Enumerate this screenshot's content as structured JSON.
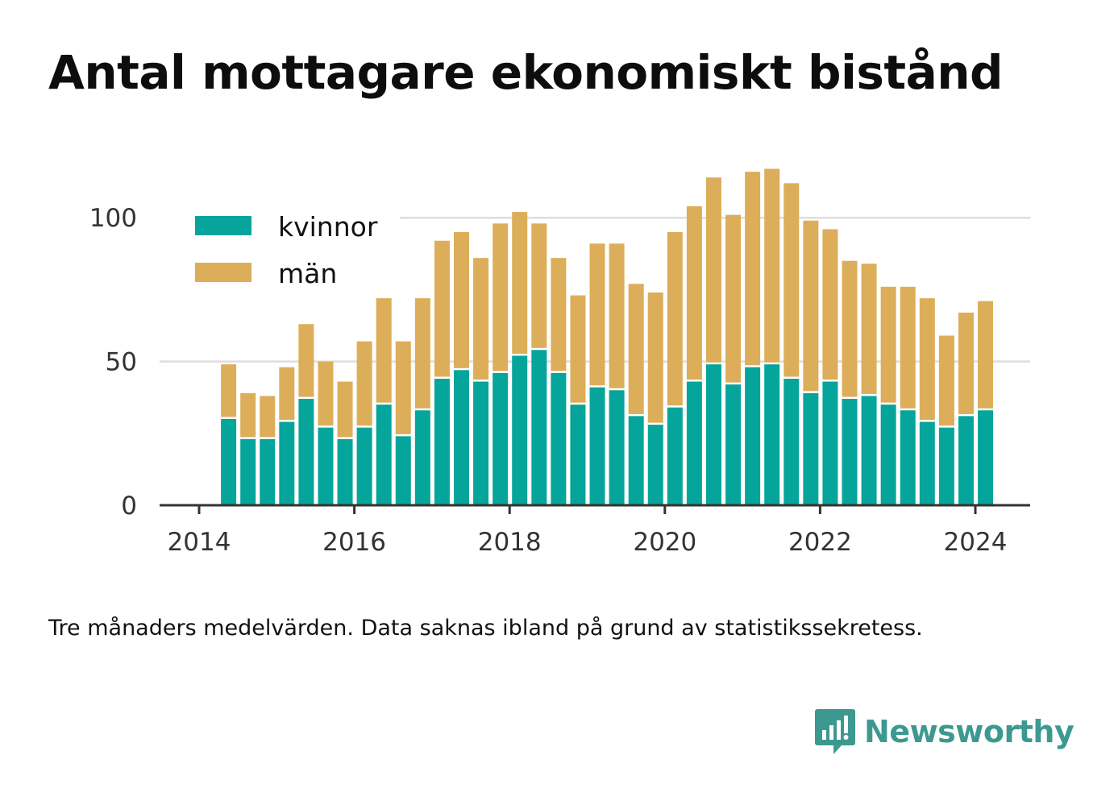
{
  "title": "Antal mottagare ekonomiskt bistånd",
  "caption": "Tre månaders medelvärden. Data saknas ibland på grund av statistikssekretess.",
  "brand": {
    "name": "Newsworthy",
    "icon": "newsworthy-logo-icon",
    "color": "#3d9990"
  },
  "chart_data": {
    "type": "bar",
    "stacked": true,
    "title": "Antal mottagare ekonomiskt bistånd",
    "xlabel": "",
    "ylabel": "",
    "ylim": [
      0,
      125
    ],
    "xlim": [
      2013.75,
      2024.7
    ],
    "y_ticks": [
      0,
      50,
      100
    ],
    "x_ticks": [
      2014,
      2016,
      2018,
      2020,
      2022,
      2024
    ],
    "grid": "horizontal",
    "legend": "top-left",
    "x": [
      2014.38,
      2014.63,
      2014.88,
      2015.13,
      2015.38,
      2015.63,
      2015.88,
      2016.13,
      2016.38,
      2016.63,
      2016.88,
      2017.13,
      2017.38,
      2017.63,
      2017.88,
      2018.13,
      2018.38,
      2018.63,
      2018.88,
      2019.13,
      2019.38,
      2019.63,
      2019.88,
      2020.13,
      2020.38,
      2020.63,
      2020.88,
      2021.13,
      2021.38,
      2021.63,
      2021.88,
      2022.13,
      2022.38,
      2022.63,
      2022.88,
      2023.13,
      2023.38,
      2023.63,
      2023.88,
      2024.13
    ],
    "series": [
      {
        "name": "kvinnor",
        "color": "#06a59b",
        "values": [
          30,
          23,
          23,
          29,
          37,
          27,
          23,
          27,
          35,
          24,
          33,
          44,
          47,
          43,
          46,
          52,
          54,
          46,
          35,
          41,
          40,
          31,
          28,
          34,
          43,
          49,
          42,
          48,
          49,
          44,
          39,
          43,
          37,
          38,
          35,
          33,
          29,
          27,
          31,
          33
        ]
      },
      {
        "name": "män",
        "color": "#dcae5a",
        "values": [
          19,
          16,
          15,
          19,
          26,
          23,
          20,
          30,
          37,
          33,
          39,
          48,
          48,
          43,
          52,
          50,
          44,
          40,
          38,
          50,
          51,
          46,
          46,
          61,
          61,
          65,
          59,
          68,
          68,
          68,
          60,
          53,
          48,
          46,
          41,
          43,
          43,
          32,
          36,
          38
        ]
      }
    ]
  }
}
